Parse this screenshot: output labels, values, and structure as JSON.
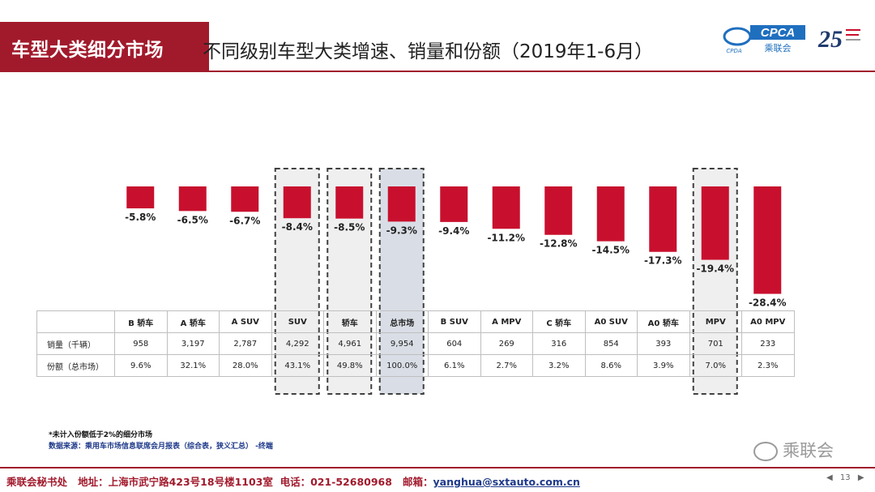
{
  "header": {
    "tag": "车型大类细分市场",
    "subtitle": "不同级别车型大类增速、销量和份额（2019年1-6月）"
  },
  "logos": {
    "cpca_text": "CPCA",
    "cpca_sub": "乘联会",
    "cpca_small": "CPDA",
    "anniv": "25"
  },
  "colors": {
    "bar": "#c8102e",
    "brand": "#a11a2c",
    "highlight": "#efefef",
    "highlight_total": "#d9dee6",
    "dash": "#404040"
  },
  "chart_data": {
    "type": "bar",
    "title": "不同级别车型大类增速、销量和份额（2019年1-6月）",
    "categories": [
      "B 轿车",
      "A 轿车",
      "A SUV",
      "SUV",
      "轿车",
      "总市场",
      "B SUV",
      "A MPV",
      "C 轿车",
      "A0 SUV",
      "A0 轿车",
      "MPV",
      "A0 MPV"
    ],
    "series": [
      {
        "name": "增速",
        "values": [
          -5.8,
          -6.5,
          -6.7,
          -8.4,
          -8.5,
          -9.3,
          -9.4,
          -11.2,
          -12.8,
          -14.5,
          -17.3,
          -19.4,
          -28.4
        ]
      }
    ],
    "value_labels": [
      "-5.8%",
      "-6.5%",
      "-6.7%",
      "-8.4%",
      "-8.5%",
      "-9.3%",
      "-9.4%",
      "-11.2%",
      "-12.8%",
      "-14.5%",
      "-17.3%",
      "-19.4%",
      "-28.4%"
    ],
    "highlighted": [
      "SUV",
      "轿车",
      "总市场",
      "MPV"
    ],
    "ylim": [
      -30,
      0
    ],
    "xlabel": "",
    "ylabel": ""
  },
  "table": {
    "rows": [
      {
        "label": "销量（千辆）",
        "values": [
          "958",
          "3,197",
          "2,787",
          "4,292",
          "4,961",
          "9,954",
          "604",
          "269",
          "316",
          "854",
          "393",
          "701",
          "233"
        ]
      },
      {
        "label": "份额（总市场）",
        "values": [
          "9.6%",
          "32.1%",
          "28.0%",
          "43.1%",
          "49.8%",
          "100.0%",
          "6.1%",
          "2.7%",
          "3.2%",
          "8.6%",
          "3.9%",
          "7.0%",
          "2.3%"
        ]
      }
    ]
  },
  "footnote": {
    "line1": "*未计入份额低于2%的细分市场",
    "line2": "数据来源：乘用车市场信息联席会月报表（综合表，狭义汇总）  -终端"
  },
  "watermark": "乘联会",
  "footer": {
    "org": "乘联会秘书处",
    "address": "地址：上海市武宁路423号18号楼1103室",
    "phone": "电话：021-52680968",
    "email_label": "邮箱：",
    "email": "yanghua@sxtauto.com.cn"
  },
  "pager": {
    "prev": "◀",
    "page": "13",
    "next": "▶"
  }
}
